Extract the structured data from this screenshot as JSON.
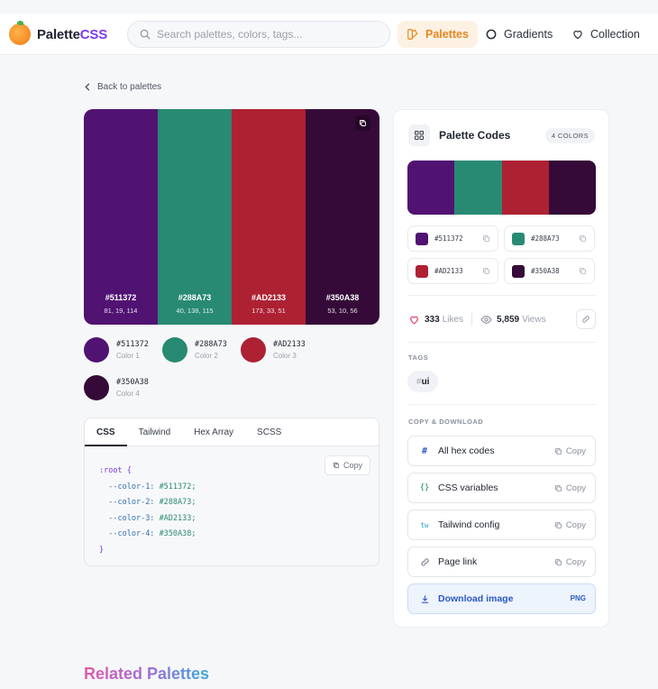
{
  "app": {
    "name_prefix": "Palette",
    "name_suffix": "CSS"
  },
  "header": {
    "search_placeholder": "Search palettes, colors, tags...",
    "nav": [
      {
        "label": "Palettes",
        "icon": "palette-icon",
        "active": true
      },
      {
        "label": "Gradients",
        "icon": "circle-icon",
        "active": false
      },
      {
        "label": "Collection",
        "icon": "heart-icon",
        "active": false
      }
    ]
  },
  "back_label": "Back to palettes",
  "palette": {
    "colors": [
      {
        "hex": "#511372",
        "rgb": "81, 19, 114",
        "name": "Color 1"
      },
      {
        "hex": "#288A73",
        "rgb": "40, 138, 115",
        "name": "Color 2"
      },
      {
        "hex": "#AD2133",
        "rgb": "173, 33, 51",
        "name": "Color 3"
      },
      {
        "hex": "#350A38",
        "rgb": "53, 10, 56",
        "name": "Color 4"
      }
    ]
  },
  "code_panel": {
    "tabs": [
      "CSS",
      "Tailwind",
      "Hex Array",
      "SCSS"
    ],
    "active_tab": "CSS",
    "copy_label": "Copy",
    "selector": ":root {",
    "close": "}",
    "lines": [
      {
        "prop": "--color-1:",
        "val": "#511372;"
      },
      {
        "prop": "--color-2:",
        "val": "#288A73;"
      },
      {
        "prop": "--color-3:",
        "val": "#AD2133;"
      },
      {
        "prop": "--color-4:",
        "val": "#350A38;"
      }
    ]
  },
  "side": {
    "title": "Palette Codes",
    "badge": "4 COLORS",
    "likes": "333",
    "likes_label": "Likes",
    "views": "5,859",
    "views_label": "Views",
    "tags_label": "TAGS",
    "tag": "ui",
    "copy_section_label": "COPY & DOWNLOAD",
    "actions": [
      {
        "label": "All hex codes",
        "icon": "#",
        "copy": "Copy"
      },
      {
        "label": "CSS variables",
        "icon": "{}",
        "copy": "Copy"
      },
      {
        "label": "Tailwind config",
        "icon": "tw",
        "copy": "Copy"
      },
      {
        "label": "Page link",
        "icon": "link-icon",
        "copy": "Copy"
      }
    ],
    "download": {
      "label": "Download image",
      "format": "PNG"
    }
  },
  "related_title": "Related Palettes"
}
